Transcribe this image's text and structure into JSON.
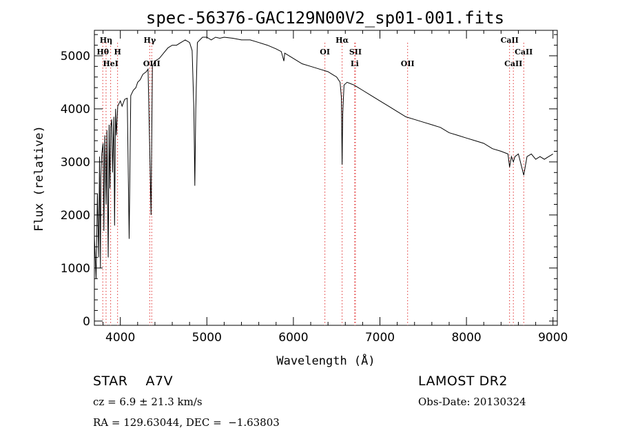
{
  "chart_data": {
    "type": "line",
    "title": "spec-56376-GAC129N00V2_sp01-001.fits",
    "xlabel": "Wavelength (Å)",
    "ylabel": "Flux (relative)",
    "xlim": [
      3700,
      9050
    ],
    "ylim": [
      -80,
      5480
    ],
    "x_ticks": [
      4000,
      5000,
      6000,
      7000,
      8000,
      9000
    ],
    "y_ticks": [
      0,
      1000,
      2000,
      3000,
      4000,
      5000
    ],
    "grid": false,
    "series": [
      {
        "x": [
          3700,
          3720,
          3735,
          3750,
          3760,
          3770,
          3775,
          3785,
          3800,
          3810,
          3820,
          3835,
          3845,
          3860,
          3870,
          3880,
          3889,
          3900,
          3910,
          3925,
          3933,
          3945,
          3955,
          3970,
          3985,
          4000,
          4020,
          4050,
          4080,
          4102,
          4120,
          4150,
          4180,
          4200,
          4230,
          4260,
          4300,
          4320,
          4340,
          4355,
          4370,
          4400,
          4450,
          4500,
          4550,
          4600,
          4650,
          4700,
          4750,
          4800,
          4830,
          4850,
          4861,
          4872,
          4890,
          4920,
          4950,
          5000,
          5050,
          5100,
          5150,
          5200,
          5250,
          5300,
          5400,
          5500,
          5600,
          5700,
          5800,
          5860,
          5890,
          5900,
          5950,
          6000,
          6100,
          6200,
          6300,
          6400,
          6450,
          6500,
          6540,
          6555,
          6563,
          6570,
          6585,
          6620,
          6700,
          6800,
          6900,
          7000,
          7100,
          7200,
          7300,
          7400,
          7500,
          7600,
          7700,
          7800,
          7900,
          8000,
          8100,
          8200,
          8300,
          8400,
          8480,
          8498,
          8520,
          8542,
          8560,
          8600,
          8662,
          8700,
          8750,
          8800,
          8850,
          8900,
          8950,
          9000
        ],
        "y": [
          1600,
          800,
          2400,
          1200,
          3100,
          1000,
          2700,
          3150,
          3350,
          1700,
          3500,
          2200,
          3600,
          1200,
          3700,
          2500,
          3650,
          3800,
          2800,
          3850,
          1800,
          4000,
          3500,
          4050,
          4100,
          4150,
          4050,
          4180,
          4200,
          1550,
          4250,
          4350,
          4400,
          4500,
          4550,
          4650,
          4700,
          4750,
          3200,
          2000,
          4800,
          4900,
          4950,
          5050,
          5150,
          5200,
          5200,
          5250,
          5300,
          5250,
          5100,
          4000,
          2550,
          4000,
          5250,
          5300,
          5350,
          5350,
          5300,
          5350,
          5330,
          5350,
          5340,
          5330,
          5300,
          5300,
          5250,
          5200,
          5130,
          5080,
          4900,
          5050,
          5000,
          4950,
          4850,
          4800,
          4750,
          4700,
          4650,
          4600,
          4500,
          4200,
          2950,
          3900,
          4450,
          4500,
          4450,
          4350,
          4250,
          4150,
          4050,
          3950,
          3850,
          3800,
          3750,
          3700,
          3650,
          3550,
          3500,
          3450,
          3400,
          3350,
          3250,
          3200,
          3150,
          2900,
          3100,
          3000,
          3100,
          3150,
          2750,
          3100,
          3150,
          3050,
          3100,
          3050,
          3100,
          3150
        ]
      }
    ],
    "lines": [
      {
        "name": "Hη",
        "x": 3835,
        "row": 1
      },
      {
        "name": "Hθ",
        "x": 3797,
        "row": 2
      },
      {
        "name": "H",
        "x": 3968,
        "row": 2
      },
      {
        "name": "HeI",
        "x": 3888,
        "row": 3
      },
      {
        "name": "Hγ",
        "x": 4340,
        "row": 1
      },
      {
        "name": "OIII",
        "x": 4363,
        "row": 3
      },
      {
        "name": "Hα",
        "x": 6563,
        "row": 1
      },
      {
        "name": "OI",
        "x": 6364,
        "row": 2
      },
      {
        "name": "SII",
        "x": 6717,
        "row": 2
      },
      {
        "name": "Li",
        "x": 6708,
        "row": 3
      },
      {
        "name": "OII",
        "x": 7320,
        "row": 3
      },
      {
        "name": "CaII",
        "x": 8498,
        "row": 1
      },
      {
        "name": "CaII",
        "x": 8662,
        "row": 2
      },
      {
        "name": "CaII",
        "x": 8542,
        "row": 3
      }
    ]
  },
  "info": {
    "object_class": "STAR    A7V",
    "survey": "LAMOST DR2",
    "redshift": "cz = 6.9 ± 21.3 km/s",
    "obs_date": "Obs-Date: 20130324",
    "coords": "RA = 129.63044, DEC =  −1.63803"
  }
}
